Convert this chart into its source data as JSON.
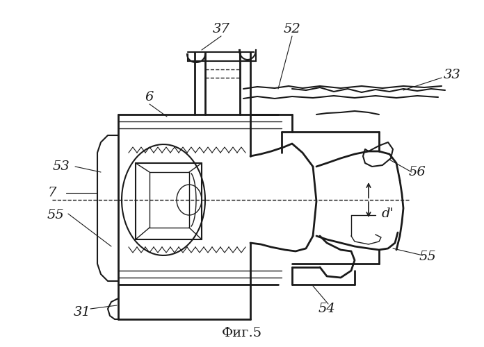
{
  "title": "Фиг.5",
  "bg_color": "#ffffff",
  "line_color": "#1a1a1a",
  "fig_width": 6.96,
  "fig_height": 5.0,
  "dpi": 100
}
